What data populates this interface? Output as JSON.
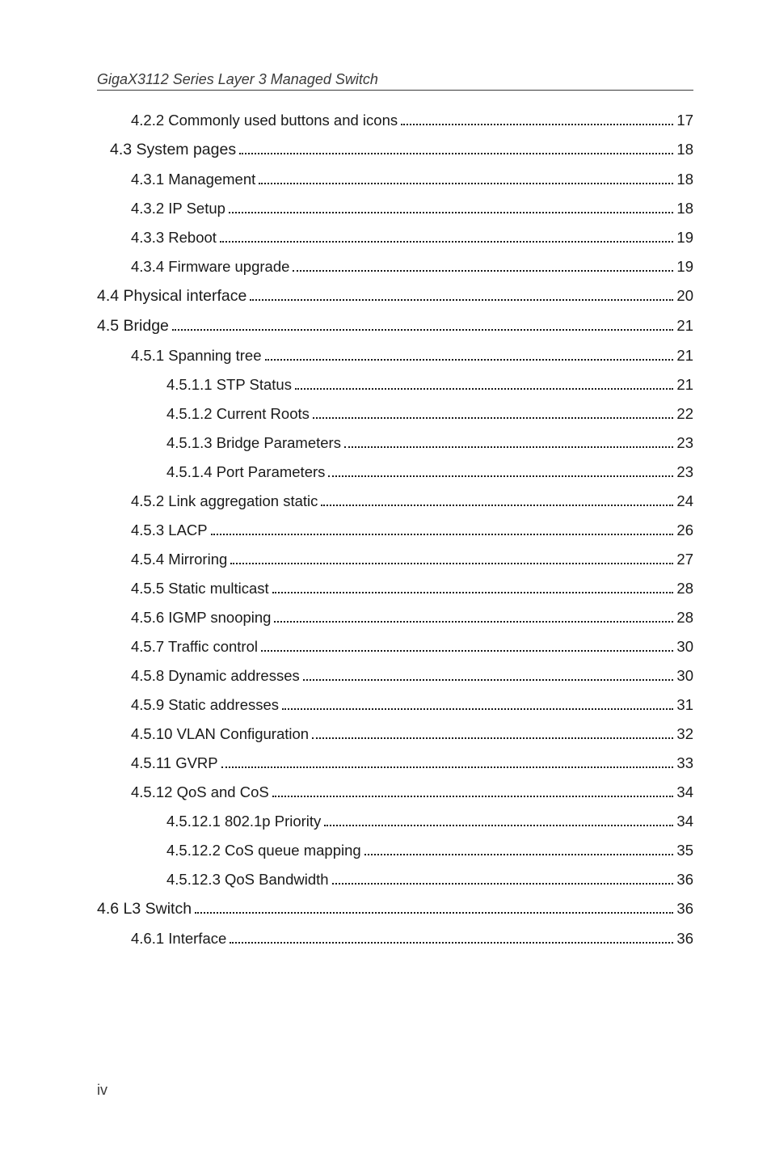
{
  "header": "GigaX3112 Series Layer 3 Managed Switch",
  "footer": "iv",
  "toc": [
    {
      "level": 2,
      "section": false,
      "label": "4.2.2  Commonly used buttons and icons",
      "page": "17"
    },
    {
      "level": 1,
      "section": true,
      "label": "4.3  System pages",
      "page": "18"
    },
    {
      "level": 2,
      "section": false,
      "label": "4.3.1  Management",
      "page": "18"
    },
    {
      "level": 2,
      "section": false,
      "label": "4.3.2  IP Setup",
      "page": "18"
    },
    {
      "level": 2,
      "section": false,
      "label": "4.3.3  Reboot",
      "page": "19"
    },
    {
      "level": 2,
      "section": false,
      "label": "4.3.4  Firmware upgrade",
      "page": "19"
    },
    {
      "level": 0,
      "section": true,
      "label": "4.4 Physical interface ",
      "page": "20"
    },
    {
      "level": 0,
      "section": true,
      "label": "4.5 Bridge",
      "page": "21"
    },
    {
      "level": 2,
      "section": false,
      "label": "4.5.1  Spanning tree",
      "page": "21"
    },
    {
      "level": 3,
      "section": false,
      "label": "4.5.1.1   STP Status",
      "page": "21"
    },
    {
      "level": 3,
      "section": false,
      "label": "4.5.1.2   Current Roots",
      "page": "22"
    },
    {
      "level": 3,
      "section": false,
      "label": "4.5.1.3   Bridge Parameters",
      "page": "23"
    },
    {
      "level": 3,
      "section": false,
      "label": "4.5.1.4   Port Parameters",
      "page": "23"
    },
    {
      "level": 2,
      "section": false,
      "label": "4.5.2  Link aggregation static",
      "page": "24"
    },
    {
      "level": 2,
      "section": false,
      "label": "4.5.3  LACP",
      "page": "26"
    },
    {
      "level": 2,
      "section": false,
      "label": "4.5.4  Mirroring",
      "page": "27"
    },
    {
      "level": 2,
      "section": false,
      "label": "4.5.5  Static multicast",
      "page": "28"
    },
    {
      "level": 2,
      "section": false,
      "label": "4.5.6  IGMP snooping",
      "page": "28"
    },
    {
      "level": 2,
      "section": false,
      "label": "4.5.7  Traffic control",
      "page": "30"
    },
    {
      "level": 2,
      "section": false,
      "label": "4.5.8  Dynamic addresses",
      "page": "30"
    },
    {
      "level": 2,
      "section": false,
      "label": "4.5.9  Static addresses",
      "page": "31"
    },
    {
      "level": 2,
      "section": false,
      "label": "4.5.10 VLAN Configuration",
      "page": "32"
    },
    {
      "level": 2,
      "section": false,
      "label": "4.5.11 GVRP",
      "page": "33"
    },
    {
      "level": 2,
      "section": false,
      "label": "4.5.12 QoS and CoS",
      "page": "34"
    },
    {
      "level": 3,
      "section": false,
      "label": "4.5.12.1 802.1p Priority",
      "page": "34"
    },
    {
      "level": 3,
      "section": false,
      "label": "4.5.12.2 CoS queue mapping",
      "page": "35"
    },
    {
      "level": 3,
      "section": false,
      "label": "4.5.12.3 QoS Bandwidth",
      "page": "36"
    },
    {
      "level": 0,
      "section": true,
      "label": "4.6 L3 Switch",
      "page": "36"
    },
    {
      "level": 2,
      "section": false,
      "label": "4.6.1  Interface",
      "page": "36"
    }
  ]
}
